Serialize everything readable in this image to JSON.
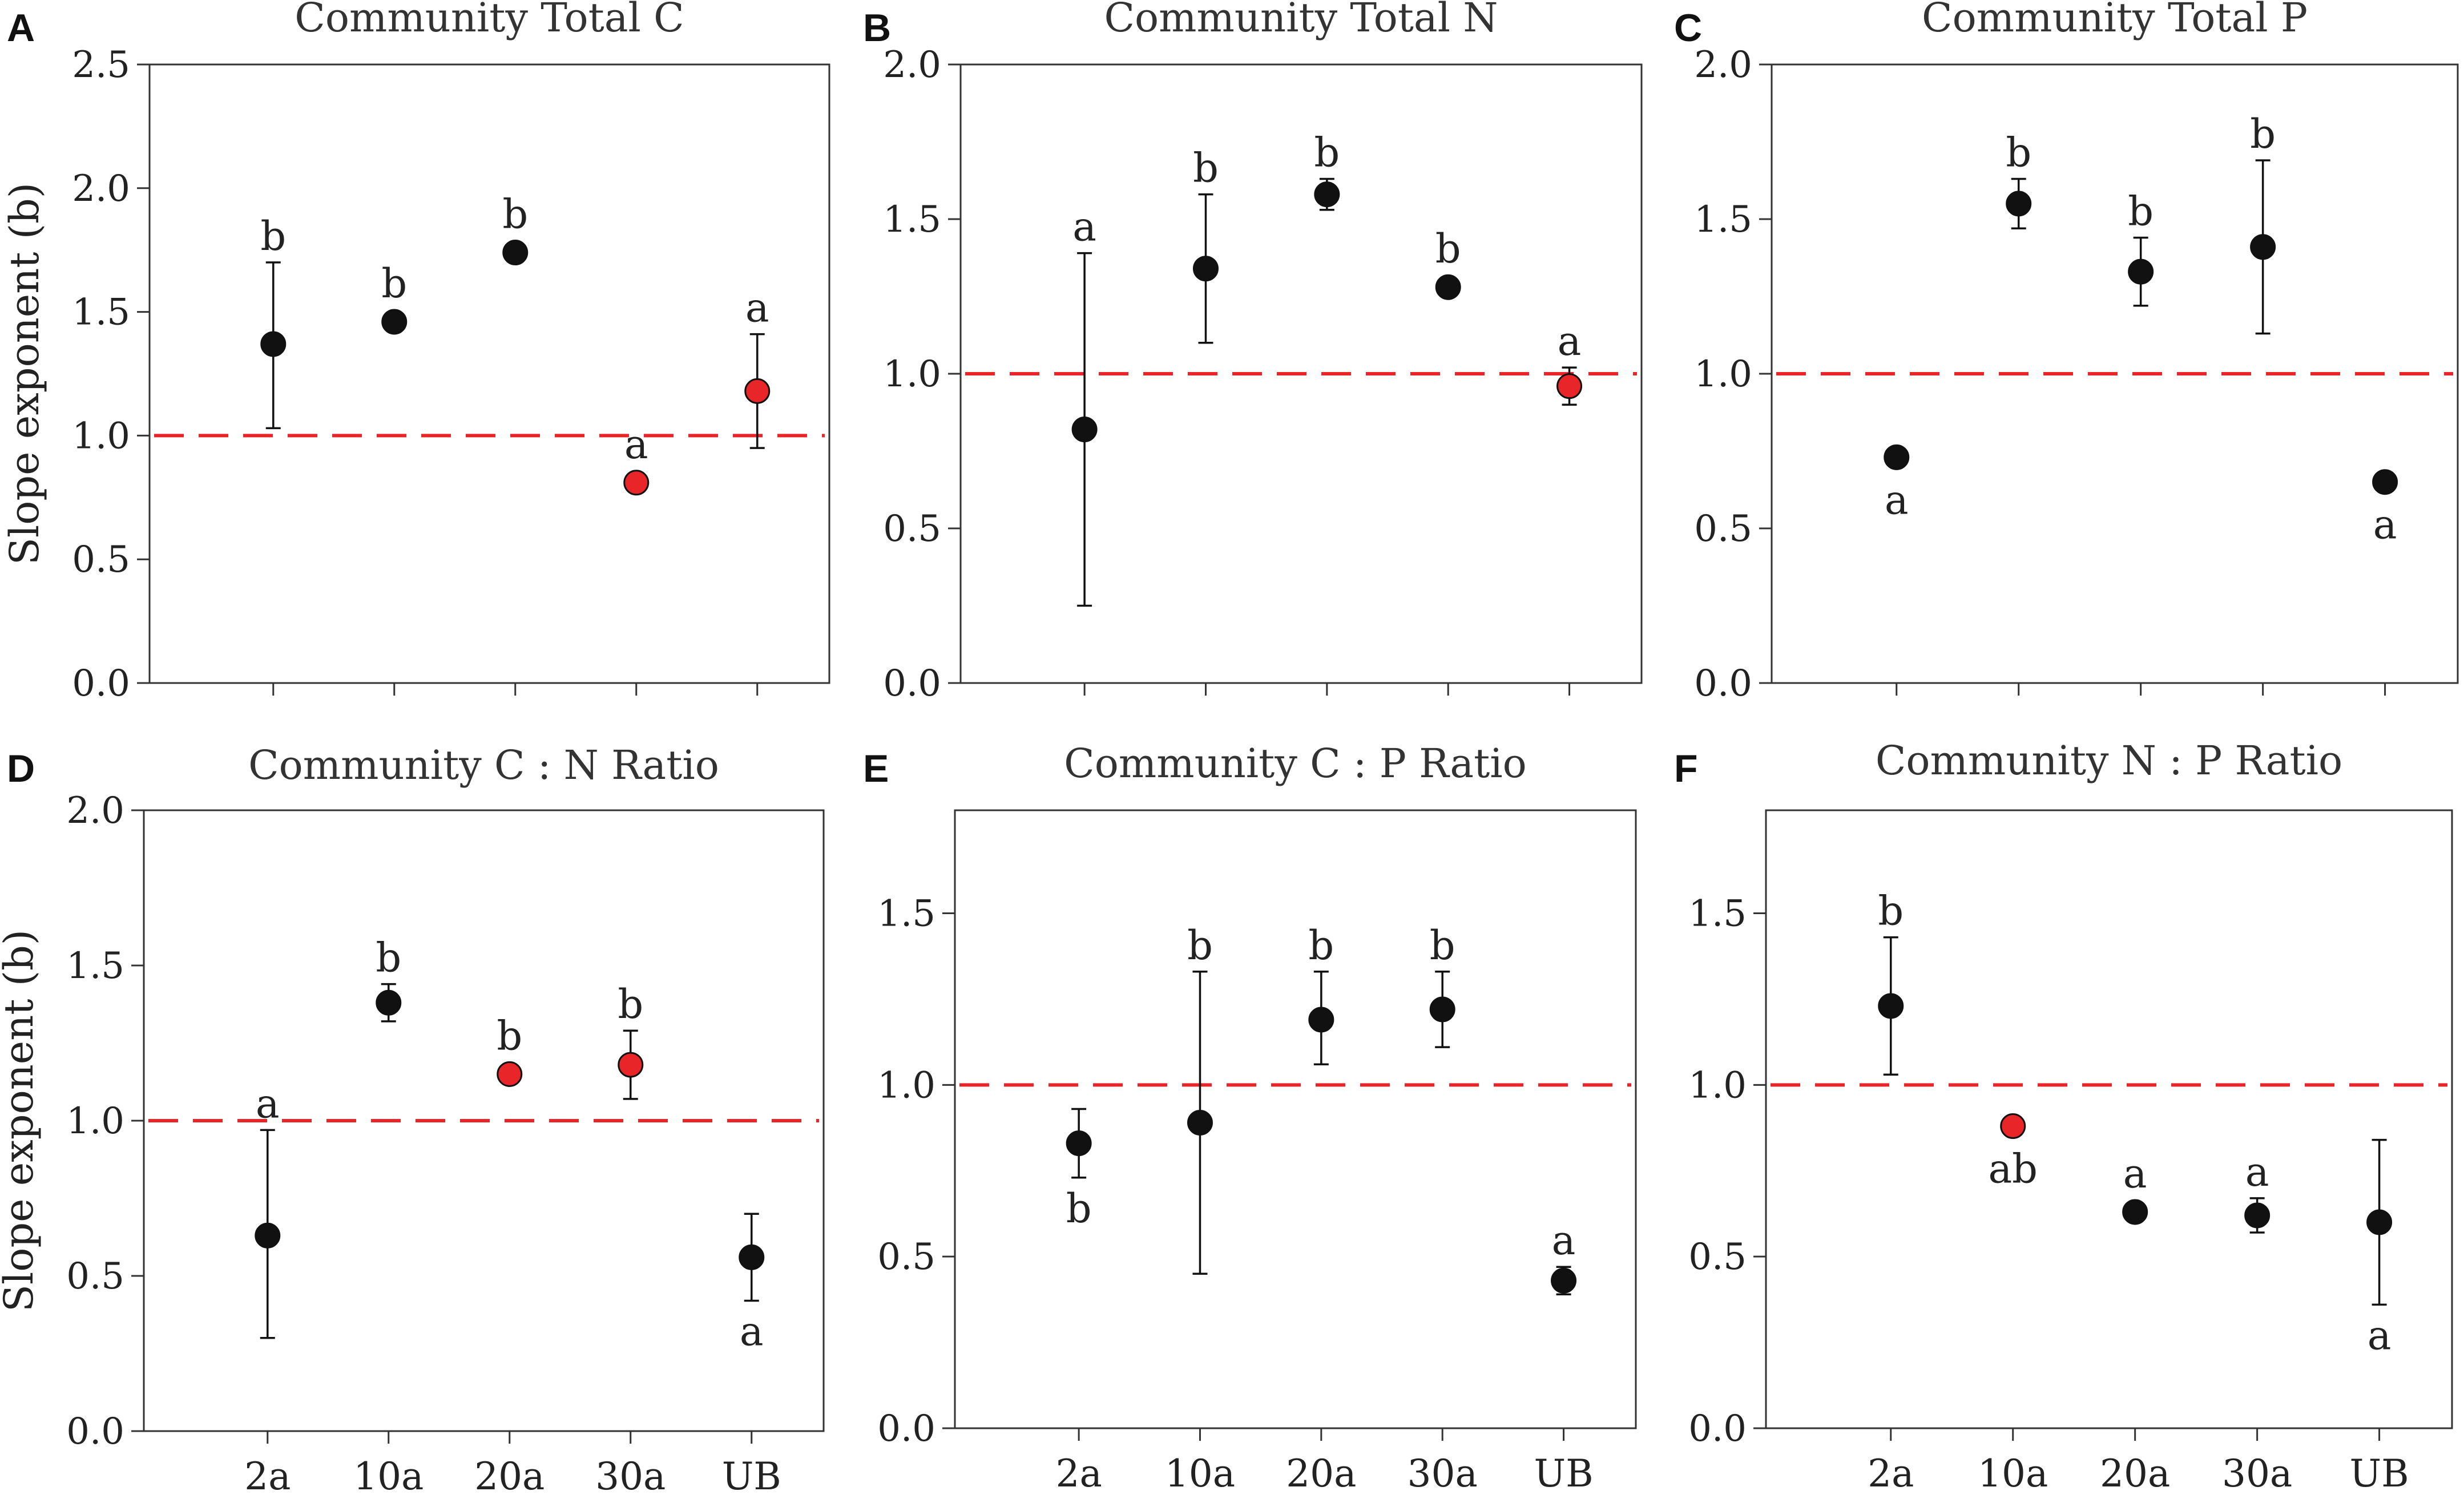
{
  "chart_data": [
    {
      "panel": "A",
      "type": "scatter",
      "title": "Community Total C",
      "ylabel": "Slope exponent (b)",
      "ylim": [
        0,
        2.5
      ],
      "yticks": [
        "0.0",
        "0.5",
        "1.0",
        "1.5",
        "2.0",
        "2.5"
      ],
      "categories": [
        "2a",
        "10a",
        "20a",
        "30a",
        "UB"
      ],
      "show_category_labels": false,
      "reference_line": 1.0,
      "points": [
        {
          "category": "2a",
          "value": 1.37,
          "err_low": 1.03,
          "err_high": 1.7,
          "color": "#111111",
          "label": "b",
          "label_pos": "above"
        },
        {
          "category": "10a",
          "value": 1.46,
          "err_low": 1.46,
          "err_high": 1.46,
          "color": "#111111",
          "label": "b",
          "label_pos": "above"
        },
        {
          "category": "20a",
          "value": 1.74,
          "err_low": 1.74,
          "err_high": 1.74,
          "color": "#111111",
          "label": "b",
          "label_pos": "above"
        },
        {
          "category": "30a",
          "value": 0.81,
          "err_low": 0.81,
          "err_high": 0.81,
          "color": "#e8262a",
          "label": "a",
          "label_pos": "above"
        },
        {
          "category": "UB",
          "value": 1.18,
          "err_low": 0.95,
          "err_high": 1.41,
          "color": "#e8262a",
          "label": "a",
          "label_pos": "above"
        }
      ]
    },
    {
      "panel": "B",
      "type": "scatter",
      "title": "Community Total N",
      "ylabel": "",
      "ylim": [
        0,
        2.0
      ],
      "yticks": [
        "0.0",
        "0.5",
        "1.0",
        "1.5",
        "2.0"
      ],
      "categories": [
        "2a",
        "10a",
        "20a",
        "30a",
        "UB"
      ],
      "show_category_labels": false,
      "reference_line": 1.0,
      "points": [
        {
          "category": "2a",
          "value": 0.82,
          "err_low": 0.25,
          "err_high": 1.39,
          "color": "#111111",
          "label": "a",
          "label_pos": "above"
        },
        {
          "category": "10a",
          "value": 1.34,
          "err_low": 1.1,
          "err_high": 1.58,
          "color": "#111111",
          "label": "b",
          "label_pos": "above"
        },
        {
          "category": "20a",
          "value": 1.58,
          "err_low": 1.53,
          "err_high": 1.63,
          "color": "#111111",
          "label": "b",
          "label_pos": "above"
        },
        {
          "category": "30a",
          "value": 1.28,
          "err_low": 1.28,
          "err_high": 1.28,
          "color": "#111111",
          "label": "b",
          "label_pos": "above"
        },
        {
          "category": "UB",
          "value": 0.96,
          "err_low": 0.9,
          "err_high": 1.02,
          "color": "#e8262a",
          "label": "a",
          "label_pos": "above"
        }
      ]
    },
    {
      "panel": "C",
      "type": "scatter",
      "title": "Community Total P",
      "ylabel": "",
      "ylim": [
        0,
        2.0
      ],
      "yticks": [
        "0.0",
        "0.5",
        "1.0",
        "1.5",
        "2.0"
      ],
      "categories": [
        "2a",
        "10a",
        "20a",
        "30a",
        "UB"
      ],
      "show_category_labels": false,
      "reference_line": 1.0,
      "points": [
        {
          "category": "2a",
          "value": 0.73,
          "err_low": 0.73,
          "err_high": 0.73,
          "color": "#111111",
          "label": "a",
          "label_pos": "below"
        },
        {
          "category": "10a",
          "value": 1.55,
          "err_low": 1.47,
          "err_high": 1.63,
          "color": "#111111",
          "label": "b",
          "label_pos": "above"
        },
        {
          "category": "20a",
          "value": 1.33,
          "err_low": 1.22,
          "err_high": 1.44,
          "color": "#111111",
          "label": "b",
          "label_pos": "above"
        },
        {
          "category": "30a",
          "value": 1.41,
          "err_low": 1.13,
          "err_high": 1.69,
          "color": "#111111",
          "label": "b",
          "label_pos": "above"
        },
        {
          "category": "UB",
          "value": 0.65,
          "err_low": 0.65,
          "err_high": 0.65,
          "color": "#111111",
          "label": "a",
          "label_pos": "below"
        }
      ]
    },
    {
      "panel": "D",
      "type": "scatter",
      "title": "Community C : N Ratio",
      "ylabel": "Slope exponent (b)",
      "ylim": [
        0,
        2.0
      ],
      "yticks": [
        "0.0",
        "0.5",
        "1.0",
        "1.5",
        "2.0"
      ],
      "categories": [
        "2a",
        "10a",
        "20a",
        "30a",
        "UB"
      ],
      "show_category_labels": true,
      "reference_line": 1.0,
      "points": [
        {
          "category": "2a",
          "value": 0.63,
          "err_low": 0.3,
          "err_high": 0.97,
          "color": "#111111",
          "label": "a",
          "label_pos": "above"
        },
        {
          "category": "10a",
          "value": 1.38,
          "err_low": 1.32,
          "err_high": 1.44,
          "color": "#111111",
          "label": "b",
          "label_pos": "above"
        },
        {
          "category": "20a",
          "value": 1.15,
          "err_low": 1.15,
          "err_high": 1.15,
          "color": "#e8262a",
          "label": "b",
          "label_pos": "above"
        },
        {
          "category": "30a",
          "value": 1.18,
          "err_low": 1.07,
          "err_high": 1.29,
          "color": "#e8262a",
          "label": "b",
          "label_pos": "above"
        },
        {
          "category": "UB",
          "value": 0.56,
          "err_low": 0.42,
          "err_high": 0.7,
          "color": "#111111",
          "label": "a",
          "label_pos": "below"
        }
      ]
    },
    {
      "panel": "E",
      "type": "scatter",
      "title": "Community C : P Ratio",
      "ylabel": "",
      "ylim": [
        0,
        1.8
      ],
      "yticks": [
        "0.0",
        "0.5",
        "1.0",
        "1.5"
      ],
      "categories": [
        "2a",
        "10a",
        "20a",
        "30a",
        "UB"
      ],
      "show_category_labels": true,
      "reference_line": 1.0,
      "points": [
        {
          "category": "2a",
          "value": 0.83,
          "err_low": 0.73,
          "err_high": 0.93,
          "color": "#111111",
          "label": "b",
          "label_pos": "below"
        },
        {
          "category": "10a",
          "value": 0.89,
          "err_low": 0.45,
          "err_high": 1.33,
          "color": "#111111",
          "label": "b",
          "label_pos": "above"
        },
        {
          "category": "20a",
          "value": 1.19,
          "err_low": 1.06,
          "err_high": 1.33,
          "color": "#111111",
          "label": "b",
          "label_pos": "above"
        },
        {
          "category": "30a",
          "value": 1.22,
          "err_low": 1.11,
          "err_high": 1.33,
          "color": "#111111",
          "label": "b",
          "label_pos": "above"
        },
        {
          "category": "UB",
          "value": 0.43,
          "err_low": 0.39,
          "err_high": 0.47,
          "color": "#111111",
          "label": "a",
          "label_pos": "above"
        }
      ]
    },
    {
      "panel": "F",
      "type": "scatter",
      "title": "Community N : P Ratio",
      "ylabel": "",
      "ylim": [
        0,
        1.8
      ],
      "yticks": [
        "0.0",
        "0.5",
        "1.0",
        "1.5"
      ],
      "categories": [
        "2a",
        "10a",
        "20a",
        "30a",
        "UB"
      ],
      "show_category_labels": true,
      "reference_line": 1.0,
      "points": [
        {
          "category": "2a",
          "value": 1.23,
          "err_low": 1.03,
          "err_high": 1.43,
          "color": "#111111",
          "label": "b",
          "label_pos": "above"
        },
        {
          "category": "10a",
          "value": 0.88,
          "err_low": 0.86,
          "err_high": 0.9,
          "color": "#e8262a",
          "label": "ab",
          "label_pos": "below"
        },
        {
          "category": "20a",
          "value": 0.63,
          "err_low": 0.63,
          "err_high": 0.63,
          "color": "#111111",
          "label": "a",
          "label_pos": "above"
        },
        {
          "category": "30a",
          "value": 0.62,
          "err_low": 0.57,
          "err_high": 0.67,
          "color": "#111111",
          "label": "a",
          "label_pos": "above"
        },
        {
          "category": "UB",
          "value": 0.6,
          "err_low": 0.36,
          "err_high": 0.84,
          "color": "#111111",
          "label": "a",
          "label_pos": "below"
        }
      ]
    }
  ],
  "colors": {
    "reference_line": "#e8262a",
    "point_default": "#111111",
    "point_highlight": "#e8262a",
    "axis": "#333333"
  }
}
